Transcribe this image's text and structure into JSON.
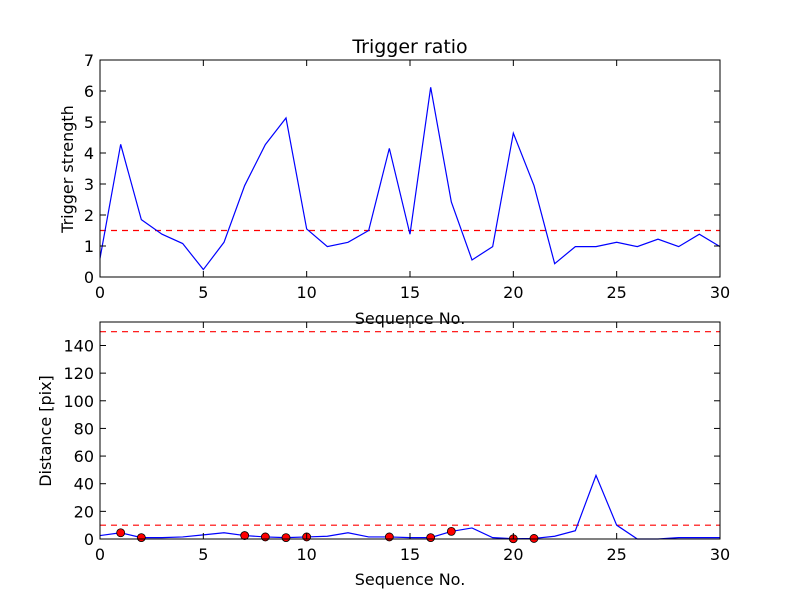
{
  "chart_data": [
    {
      "type": "line",
      "title": "Trigger ratio",
      "xlabel": "Sequence No.",
      "ylabel": "Trigger strength",
      "xlim": [
        0,
        30
      ],
      "ylim": [
        0,
        7
      ],
      "xticks": [
        0,
        5,
        10,
        15,
        20,
        25,
        30
      ],
      "yticks": [
        0,
        1,
        2,
        3,
        4,
        5,
        6,
        7
      ],
      "grid": false,
      "colors": {
        "line": "#0000ff",
        "threshold": "#ff0000"
      },
      "x": [
        0,
        1,
        2,
        3,
        4,
        5,
        6,
        7,
        8,
        9,
        10,
        11,
        12,
        13,
        14,
        15,
        16,
        17,
        18,
        19,
        20,
        21,
        22,
        23,
        24,
        25,
        26,
        27,
        28,
        29,
        30
      ],
      "series": [
        {
          "values": [
            0.6,
            4.28,
            1.85,
            1.38,
            1.08,
            0.24,
            1.12,
            2.95,
            4.27,
            5.13,
            1.55,
            0.98,
            1.12,
            1.5,
            4.15,
            1.38,
            6.12,
            2.42,
            0.55,
            0.98,
            4.64,
            2.95,
            0.43,
            0.98,
            0.98,
            1.12,
            0.98,
            1.22,
            0.98,
            1.38,
            0.98
          ]
        }
      ],
      "hlines": [
        1.5
      ]
    },
    {
      "type": "line",
      "title": "",
      "xlabel": "Sequence No.",
      "ylabel": "Distance [pix]",
      "xlim": [
        0,
        30
      ],
      "ylim": [
        0,
        157
      ],
      "xticks": [
        0,
        5,
        10,
        15,
        20,
        25,
        30
      ],
      "yticks": [
        0,
        20,
        40,
        60,
        80,
        100,
        120,
        140
      ],
      "grid": false,
      "colors": {
        "line": "#0000ff",
        "threshold": "#ff0000",
        "marker": "#ff0000"
      },
      "x": [
        0,
        1,
        2,
        3,
        4,
        5,
        6,
        7,
        8,
        9,
        10,
        11,
        12,
        13,
        14,
        15,
        16,
        17,
        18,
        19,
        20,
        21,
        22,
        23,
        24,
        25,
        26,
        27,
        28,
        29,
        30
      ],
      "series": [
        {
          "values": [
            2.5,
            4.5,
            1.0,
            1.0,
            1.5,
            3.0,
            4.5,
            2.5,
            1.5,
            1.0,
            1.5,
            2.0,
            4.5,
            1.5,
            1.5,
            1.0,
            1.0,
            5.5,
            8.0,
            1.0,
            0.2,
            0.4,
            2.0,
            6.0,
            46.0,
            10.0,
            0.0,
            0.0,
            1.0,
            1.0,
            1.0
          ]
        }
      ],
      "markers": {
        "x": [
          1,
          2,
          7,
          8,
          9,
          10,
          14,
          16,
          17,
          20,
          21
        ],
        "y": [
          4.5,
          1.0,
          2.5,
          1.5,
          1.0,
          1.5,
          1.5,
          1.0,
          5.5,
          0.2,
          0.4
        ]
      },
      "hlines": [
        150,
        10
      ]
    }
  ]
}
